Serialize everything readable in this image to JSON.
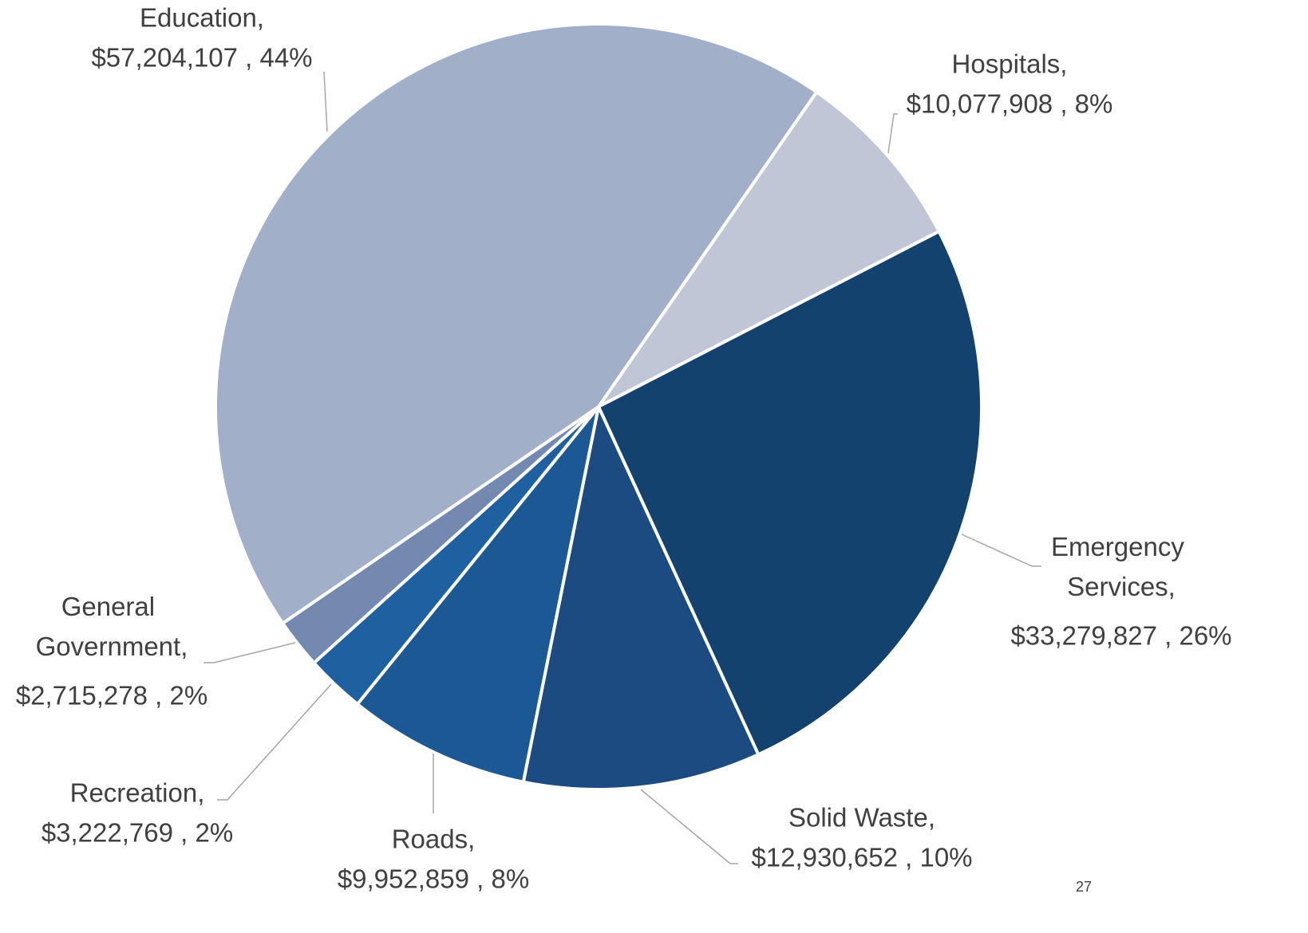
{
  "chart_data": {
    "type": "pie",
    "categories": [
      "Hospitals,",
      "Emergency Services,",
      "Solid Waste,",
      "Roads,",
      "Recreation,",
      "General Government,",
      "Education,"
    ],
    "values": [
      10077908,
      33279827,
      12930652,
      9952859,
      3222769,
      2715278,
      57204107
    ],
    "value_labels": [
      "$10,077,908 , 8%",
      "$33,279,827 , 26%",
      "$12,930,652 , 10%",
      "$9,952,859 , 8%",
      "$3,222,769 , 2%",
      "$2,715,278 , 2%",
      "$57,204,107 , 44%"
    ],
    "colors": [
      "#c0c6d6",
      "#14426f",
      "#1b4b80",
      "#1c5894",
      "#1f60a0",
      "#7489b0",
      "#a1afc8"
    ]
  },
  "footer": {
    "page_number": "27"
  }
}
